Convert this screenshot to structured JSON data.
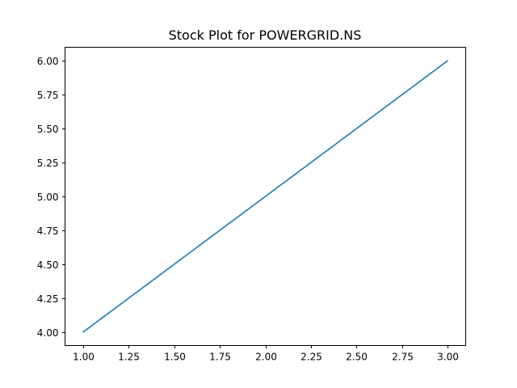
{
  "chart_data": {
    "type": "line",
    "title": "Stock Plot for POWERGRID.NS",
    "xlabel": "",
    "ylabel": "",
    "x": [
      1.0,
      2.0,
      3.0
    ],
    "series": [
      {
        "values": [
          4.0,
          5.0,
          6.0
        ],
        "color": "#1f77b4"
      }
    ],
    "xlim": [
      0.9,
      3.1
    ],
    "ylim": [
      3.9,
      6.1
    ],
    "xticks": [
      1.0,
      1.25,
      1.5,
      1.75,
      2.0,
      2.25,
      2.5,
      2.75,
      3.0
    ],
    "xtick_labels": [
      "1.00",
      "1.25",
      "1.50",
      "1.75",
      "2.00",
      "2.25",
      "2.50",
      "2.75",
      "3.00"
    ],
    "yticks": [
      4.0,
      4.25,
      4.5,
      4.75,
      5.0,
      5.25,
      5.5,
      5.75,
      6.0
    ],
    "ytick_labels": [
      "4.00",
      "4.25",
      "4.50",
      "4.75",
      "5.00",
      "5.25",
      "5.50",
      "5.75",
      "6.00"
    ],
    "grid": false,
    "legend": false
  }
}
